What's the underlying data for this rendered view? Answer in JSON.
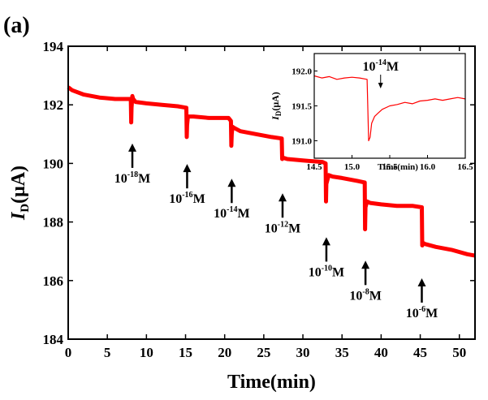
{
  "figure": {
    "panel_label": "(a)"
  },
  "chart_data": [
    {
      "type": "line",
      "title": "",
      "xlabel": "Time(min)",
      "ylabel_main": "I",
      "ylabel_sub": "D",
      "ylabel_unit": "(μA)",
      "xlim": [
        0,
        52
      ],
      "ylim": [
        184,
        194
      ],
      "xticks": [
        0,
        5,
        10,
        15,
        20,
        25,
        30,
        35,
        40,
        45,
        50
      ],
      "yticks": [
        184,
        186,
        188,
        190,
        192,
        194
      ],
      "grid": false,
      "line_color": "#ff0000",
      "series": [
        {
          "x": [
            0,
            0.5,
            2,
            4,
            6,
            8,
            8.05,
            8.1,
            8.2,
            8.3,
            8.6,
            10,
            12,
            14,
            15.1,
            15.15,
            15.2,
            15.3,
            15.5,
            16,
            18,
            20.5,
            20.8,
            20.85,
            20.9,
            21,
            21.3,
            22,
            24,
            26,
            27.3,
            27.35,
            27.4,
            28,
            30,
            32.5,
            32.9,
            32.95,
            33,
            33.3,
            33.8,
            35,
            37,
            37.9,
            37.95,
            38,
            38.2,
            38.6,
            40,
            42,
            44,
            45.2,
            45.25,
            45.3,
            45.6,
            47,
            49,
            51,
            52
          ],
          "y": [
            192.6,
            192.5,
            192.35,
            192.25,
            192.2,
            192.2,
            191.4,
            191.9,
            192.3,
            192.2,
            192.1,
            192.05,
            192.0,
            191.95,
            191.9,
            190.9,
            191.3,
            191.6,
            191.6,
            191.6,
            191.55,
            191.55,
            191.45,
            190.6,
            191.0,
            191.25,
            191.2,
            191.1,
            191.0,
            190.9,
            190.85,
            190.15,
            190.2,
            190.15,
            190.1,
            190.05,
            190.0,
            188.7,
            189.3,
            189.6,
            189.55,
            189.5,
            189.4,
            189.35,
            187.75,
            188.5,
            188.7,
            188.65,
            188.6,
            188.55,
            188.55,
            188.5,
            187.2,
            187.3,
            187.25,
            187.15,
            187.05,
            186.9,
            186.85
          ]
        }
      ],
      "annotations": [
        {
          "base": "10",
          "exp": "-18",
          "unit": "M",
          "x": 8.2,
          "arrow_y": 190.9
        },
        {
          "base": "10",
          "exp": "-16",
          "unit": "M",
          "x": 15.2,
          "arrow_y": 190.2
        },
        {
          "base": "10",
          "exp": "-14",
          "unit": "M",
          "x": 20.9,
          "arrow_y": 189.7
        },
        {
          "base": "10",
          "exp": "-12",
          "unit": "M",
          "x": 27.4,
          "arrow_y": 189.2
        },
        {
          "base": "10",
          "exp": "-10",
          "unit": "M",
          "x": 33.0,
          "arrow_y": 187.7
        },
        {
          "base": "10",
          "exp": "-8",
          "unit": "M",
          "x": 38.0,
          "arrow_y": 186.9
        },
        {
          "base": "10",
          "exp": "-6",
          "unit": "M",
          "x": 45.2,
          "arrow_y": 186.3
        }
      ]
    },
    {
      "type": "line",
      "title": "",
      "xlabel": "Time(min)",
      "ylabel_main": "I",
      "ylabel_sub": "D",
      "ylabel_unit": "(μA)",
      "xlim": [
        14.5,
        16.5
      ],
      "ylim": [
        190.75,
        192.25
      ],
      "xticks": [
        14.5,
        15.0,
        15.5,
        16.0,
        16.5
      ],
      "xtick_labels": [
        "14.5",
        "15.0",
        "15.5",
        "16.0",
        "16.5"
      ],
      "yticks": [
        191.0,
        191.5,
        192.0
      ],
      "ytick_labels": [
        "191.0",
        "191.5",
        "192.0"
      ],
      "grid": false,
      "line_color": "#ff0000",
      "series": [
        {
          "x": [
            14.5,
            14.6,
            14.7,
            14.8,
            14.9,
            15.0,
            15.1,
            15.2,
            15.22,
            15.24,
            15.26,
            15.3,
            15.35,
            15.4,
            15.5,
            15.6,
            15.7,
            15.8,
            15.9,
            16.0,
            16.1,
            16.2,
            16.3,
            16.4,
            16.5
          ],
          "y": [
            191.93,
            191.9,
            191.92,
            191.88,
            191.9,
            191.91,
            191.9,
            191.88,
            191.0,
            191.05,
            191.25,
            191.35,
            191.4,
            191.45,
            191.5,
            191.52,
            191.55,
            191.53,
            191.57,
            191.58,
            191.6,
            191.58,
            191.6,
            191.62,
            191.6
          ]
        }
      ],
      "annotations": [
        {
          "base": "10",
          "exp": "-14",
          "unit": "M",
          "x": 15.25
        }
      ]
    }
  ]
}
